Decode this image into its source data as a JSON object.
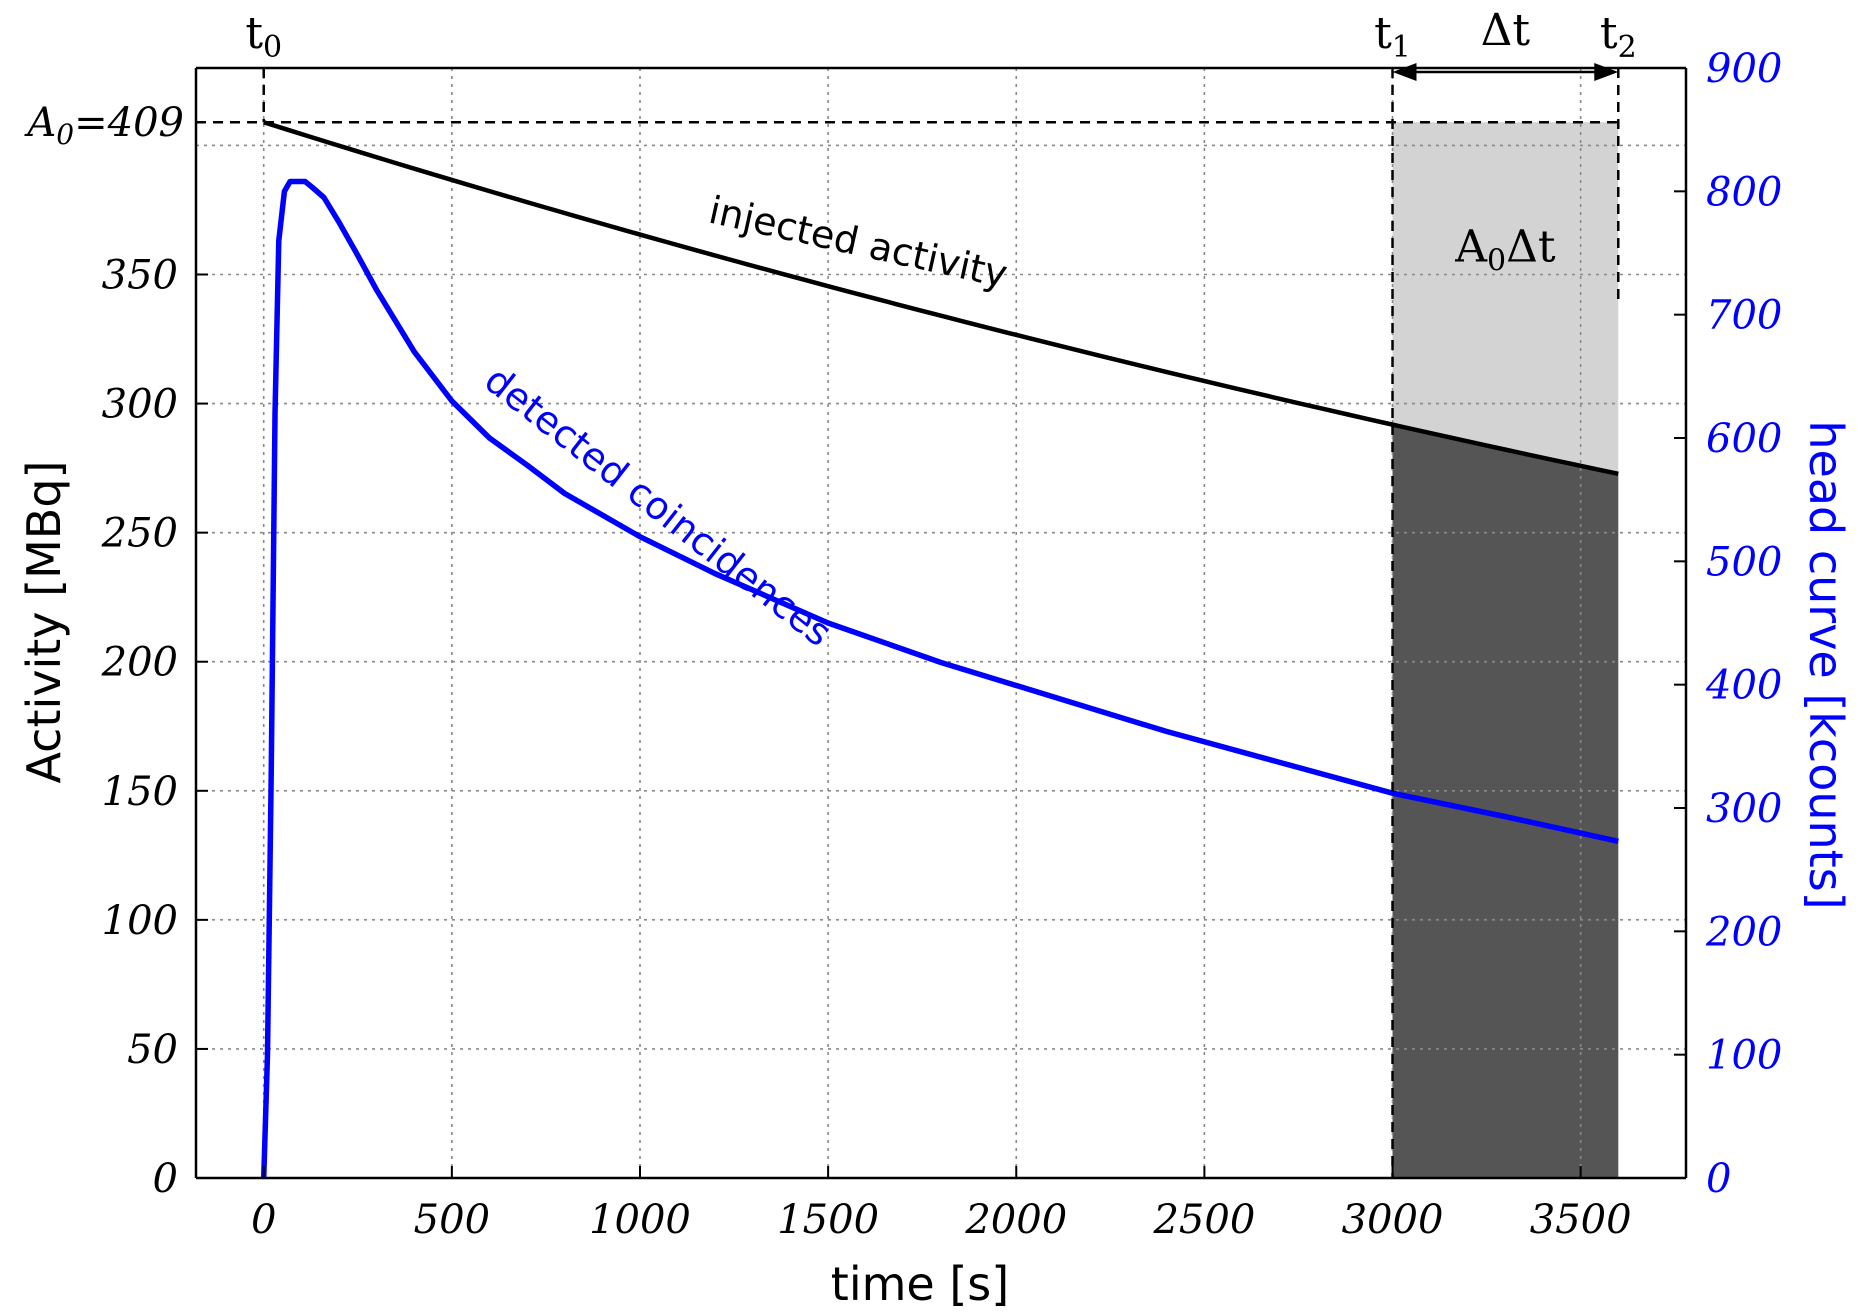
{
  "chart_data": {
    "type": "line",
    "xlabel": "time [s]",
    "ylabel": "Activity [MBq]",
    "y2label": "head curve [kcounts]",
    "xlim": [
      -180,
      3780
    ],
    "ylim": [
      0,
      430
    ],
    "y2lim": [
      0,
      900
    ],
    "x_ticks": [
      0,
      500,
      1000,
      1500,
      2000,
      2500,
      3000,
      3500
    ],
    "y_ticks": [
      0,
      50,
      100,
      150,
      200,
      250,
      300,
      350
    ],
    "y2_ticks": [
      0,
      100,
      200,
      300,
      400,
      500,
      600,
      700,
      800,
      900
    ],
    "grid": true,
    "series": [
      {
        "name": "injected activity",
        "axis": "left",
        "color": "#000000",
        "x": [
          0,
          300,
          600,
          900,
          1200,
          1500,
          1800,
          2100,
          2400,
          2700,
          3000,
          3300,
          3600
        ],
        "y": [
          409,
          395.4,
          382.3,
          369.6,
          357.3,
          345.4,
          334.0,
          322.9,
          312.2,
          301.8,
          291.8,
          282.1,
          272.8
        ]
      },
      {
        "name": "detected coincidences",
        "axis": "right",
        "color": "#0000ff",
        "x": [
          0,
          10,
          20,
          30,
          40,
          55,
          70,
          90,
          110,
          130,
          160,
          200,
          250,
          300,
          400,
          500,
          600,
          700,
          800,
          1000,
          1200,
          1500,
          1800,
          2100,
          2400,
          2700,
          3000,
          3300,
          3600
        ],
        "y": [
          0,
          100,
          330,
          620,
          760,
          800,
          808,
          808,
          808,
          803,
          795,
          775,
          748,
          720,
          670,
          630,
          600,
          578,
          555,
          520,
          490,
          450,
          418,
          390,
          362,
          337,
          312,
          293,
          273
        ]
      }
    ],
    "shaded_region": {
      "x_start": 3000,
      "x_end": 3600,
      "light_color": "#d3d3d3",
      "dark_color": "#555555"
    },
    "annotations": {
      "a0_label": "A",
      "a0_sub": "0",
      "a0_value": "=409",
      "a0_level": 409,
      "t0": "t",
      "t0_sub": "0",
      "t1": "t",
      "t1_sub": "1",
      "t2": "t",
      "t2_sub": "2",
      "delta_t": "Δt",
      "area_label_a": "A",
      "area_label_sub": "0",
      "area_label_rest": "Δt"
    }
  }
}
